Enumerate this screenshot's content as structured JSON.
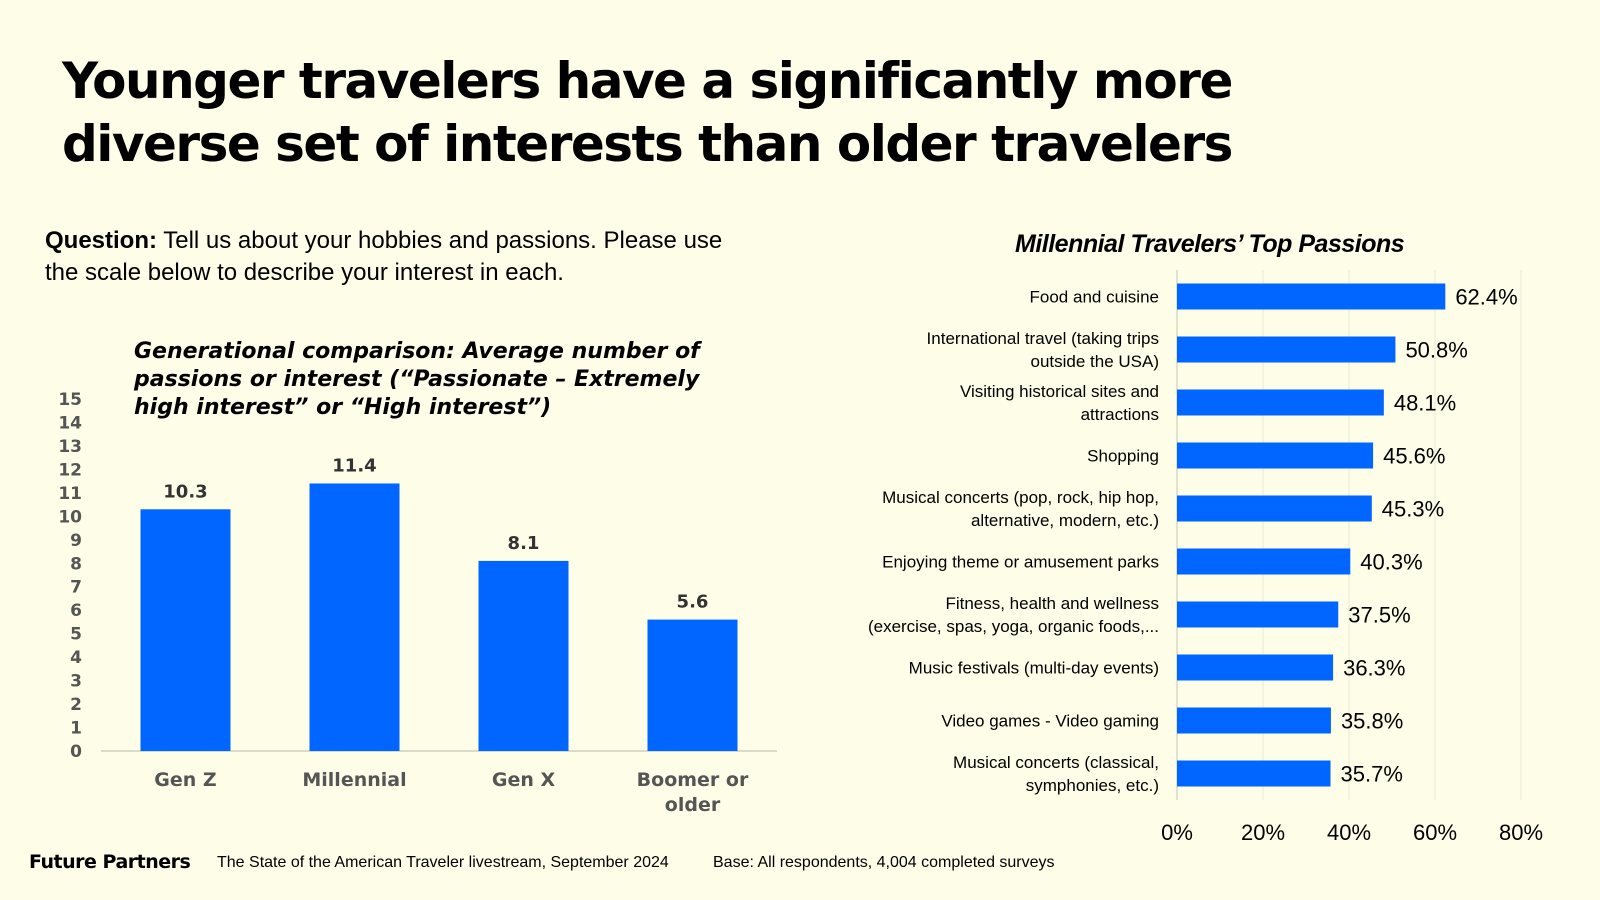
{
  "headline": {
    "line1": "Younger travelers have a significantly more",
    "line2": "diverse set of interests than older travelers"
  },
  "question": {
    "label": "Question:",
    "text": " Tell us about your hobbies and passions.  Please use the scale below to describe your interest in each."
  },
  "footer": {
    "brand": "Future Partners",
    "source": "The State of the American Traveler livestream, September 2024",
    "base": "Base: All respondents, 4,004 completed surveys"
  },
  "colors": {
    "bar": "#0066ff",
    "background": "#fdfde8",
    "grid": "#e9e9d6"
  },
  "chart_data": [
    {
      "type": "bar",
      "orientation": "vertical",
      "title_lines": [
        "Generational comparison: Average number of",
        "passions or interest (“Passionate – Extremely",
        "high interest” or “High interest”)"
      ],
      "categories": [
        [
          "Gen Z"
        ],
        [
          "Millennial"
        ],
        [
          "Gen X"
        ],
        [
          "Boomer or",
          "older"
        ]
      ],
      "values": [
        10.3,
        11.4,
        8.1,
        5.6
      ],
      "value_labels": [
        "10.3",
        "11.4",
        "8.1",
        "5.6"
      ],
      "ylim": [
        0,
        15
      ],
      "yticks": [
        0,
        1,
        2,
        3,
        4,
        5,
        6,
        7,
        8,
        9,
        10,
        11,
        12,
        13,
        14,
        15
      ],
      "grid": false
    },
    {
      "type": "bar",
      "orientation": "horizontal",
      "title": "Millennial Travelers’ Top Passions",
      "categories": [
        [
          "Food and cuisine"
        ],
        [
          "International travel  (taking trips",
          "outside the USA)"
        ],
        [
          "Visiting historical sites and",
          "attractions"
        ],
        [
          "Shopping"
        ],
        [
          "Musical concerts (pop, rock, hip hop,",
          "alternative, modern, etc.)"
        ],
        [
          "Enjoying theme or amusement parks"
        ],
        [
          "Fitness, health and wellness",
          "(exercise, spas, yoga, organic foods,..."
        ],
        [
          "Music festivals (multi-day events)"
        ],
        [
          "Video games - Video gaming"
        ],
        [
          "Musical concerts (classical,",
          "symphonies, etc.)"
        ]
      ],
      "values": [
        62.4,
        50.8,
        48.1,
        45.6,
        45.3,
        40.3,
        37.5,
        36.3,
        35.8,
        35.7
      ],
      "value_labels": [
        "62.4%",
        "50.8%",
        "48.1%",
        "45.6%",
        "45.3%",
        "40.3%",
        "37.5%",
        "36.3%",
        "35.8%",
        "35.7%"
      ],
      "xlim": [
        0,
        80
      ],
      "xticks": [
        "0%",
        "20%",
        "40%",
        "60%",
        "80%"
      ],
      "grid": true
    }
  ]
}
